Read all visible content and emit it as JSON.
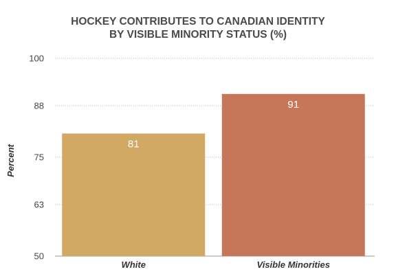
{
  "chart_data": {
    "type": "bar",
    "title_lines": [
      "HOCKEY CONTRIBUTES TO CANADIAN IDENTITY",
      "BY VISIBLE MINORITY STATUS (%)"
    ],
    "xlabel": "",
    "ylabel": "Percent",
    "categories": [
      "White",
      "Visible Minorities"
    ],
    "values": [
      81,
      91
    ],
    "data_labels": [
      "81",
      "91"
    ],
    "bar_colors": [
      "#d2a865",
      "#c6775a"
    ],
    "ylim": [
      50,
      100
    ],
    "yticks": [
      50,
      63,
      75,
      88,
      100
    ],
    "ytick_labels": [
      "50",
      "63",
      "75",
      "88",
      "100"
    ],
    "grid": "dotted horizontal",
    "legend": "none"
  }
}
